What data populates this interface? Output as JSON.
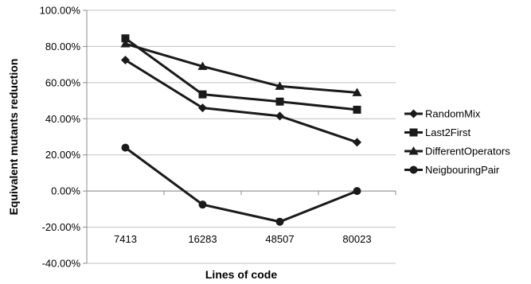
{
  "chart_data": {
    "type": "line",
    "title": "",
    "xlabel": "Lines of code",
    "ylabel": "Equivalent mutants reduction",
    "categories": [
      "7413",
      "16283",
      "48507",
      "80023"
    ],
    "ylim": [
      -40,
      100
    ],
    "yticks": [
      -40,
      -20,
      0,
      20,
      40,
      60,
      80,
      100
    ],
    "ytick_labels": [
      "-40.00%",
      "-20.00%",
      "0.00%",
      "20.00%",
      "40.00%",
      "60.00%",
      "80.00%",
      "100.00%"
    ],
    "grid": "horizontal",
    "legend_position": "right",
    "series": [
      {
        "name": "RandomMix",
        "marker": "diamond",
        "values": [
          72.5,
          46,
          41.5,
          27
        ]
      },
      {
        "name": "Last2First",
        "marker": "square",
        "values": [
          84.5,
          53.5,
          49.5,
          45
        ]
      },
      {
        "name": "DifferentOperators",
        "marker": "triangle",
        "values": [
          81.5,
          69,
          58,
          54.5
        ]
      },
      {
        "name": "NeigbouringPair",
        "marker": "circle",
        "values": [
          24,
          -7.5,
          -17,
          0
        ]
      }
    ],
    "line_color": "#1a1a1a",
    "grid_color": "#c0c0c0",
    "axis_color": "#8c8c8c"
  }
}
